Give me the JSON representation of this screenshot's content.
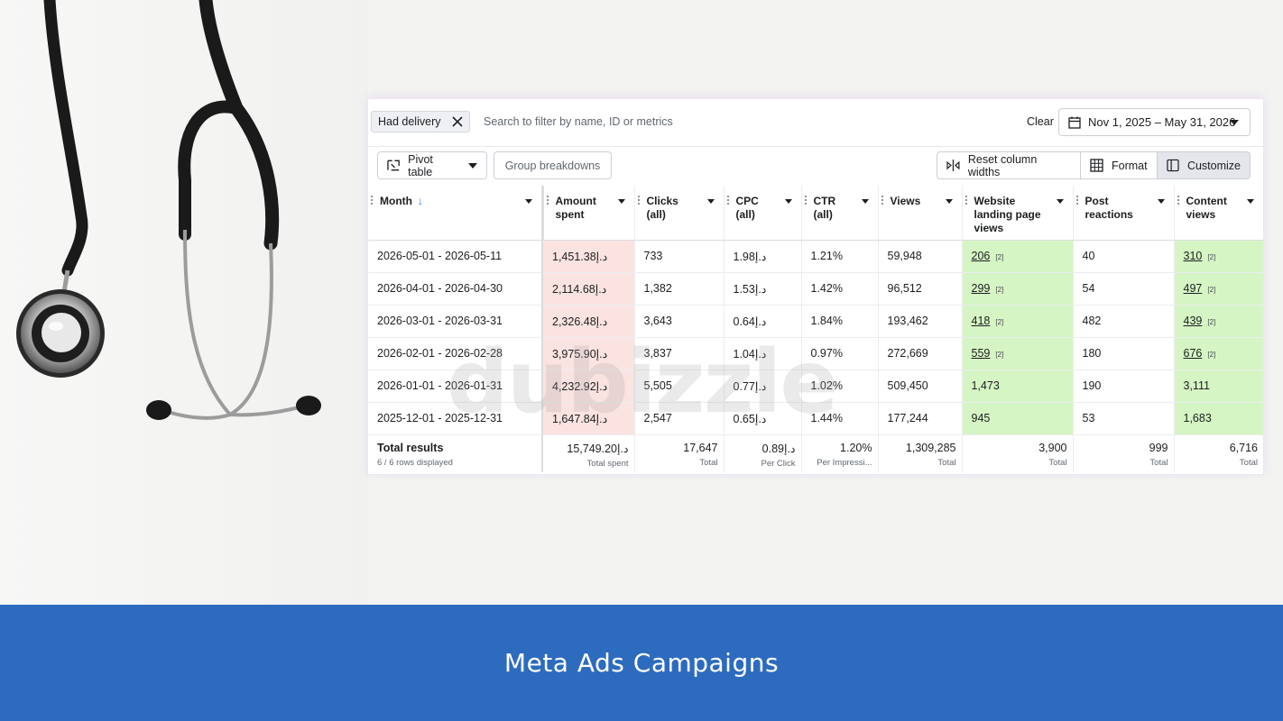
{
  "filter": {
    "chip_label": "Had delivery",
    "search_placeholder": "Search to filter by name, ID or metrics",
    "clear_label": "Clear",
    "date_range": "Nov 1, 2025 – May 31, 2026"
  },
  "toolbar": {
    "pivot_label": "Pivot table",
    "group_label": "Group breakdowns",
    "reset_label": "Reset column widths",
    "format_label": "Format",
    "customize_label": "Customize"
  },
  "columns": {
    "month": "Month",
    "amount_1": "Amount",
    "amount_2": "spent",
    "clicks_1": "Clicks",
    "clicks_2": "(all)",
    "cpc_1": "CPC",
    "cpc_2": "(all)",
    "ctr_1": "CTR",
    "ctr_2": "(all)",
    "views": "Views",
    "wlpv_1": "Website",
    "wlpv_2": "landing page",
    "wlpv_3": "views",
    "reactions_1": "Post",
    "reactions_2": "reactions",
    "content_1": "Content",
    "content_2": "views"
  },
  "rows": [
    {
      "month": "2026-05-01 - 2026-05-11",
      "amount": "1,451.38د.إ",
      "clicks": "733",
      "cpc": "1.98د.إ",
      "ctr": "1.21%",
      "views": "59,948",
      "wlpv": "206",
      "wlpv_note": "[2]",
      "reactions": "40",
      "content": "310",
      "content_note": "[2]"
    },
    {
      "month": "2026-04-01 - 2026-04-30",
      "amount": "2,114.68د.إ",
      "clicks": "1,382",
      "cpc": "1.53د.إ",
      "ctr": "1.42%",
      "views": "96,512",
      "wlpv": "299",
      "wlpv_note": "[2]",
      "reactions": "54",
      "content": "497",
      "content_note": "[2]"
    },
    {
      "month": "2026-03-01 - 2026-03-31",
      "amount": "2,326.48د.إ",
      "clicks": "3,643",
      "cpc": "0.64د.إ",
      "ctr": "1.84%",
      "views": "193,462",
      "wlpv": "418",
      "wlpv_note": "[2]",
      "reactions": "482",
      "content": "439",
      "content_note": "[2]"
    },
    {
      "month": "2026-02-01 - 2026-02-28",
      "amount": "3,975.90د.إ",
      "clicks": "3,837",
      "cpc": "1.04د.إ",
      "ctr": "0.97%",
      "views": "272,669",
      "wlpv": "559",
      "wlpv_note": "[2]",
      "reactions": "180",
      "content": "676",
      "content_note": "[2]"
    },
    {
      "month": "2026-01-01 - 2026-01-31",
      "amount": "4,232.92د.إ",
      "clicks": "5,505",
      "cpc": "0.77د.إ",
      "ctr": "1.02%",
      "views": "509,450",
      "wlpv": "1,473",
      "wlpv_note": "",
      "reactions": "190",
      "content": "3,111",
      "content_note": ""
    },
    {
      "month": "2025-12-01 - 2025-12-31",
      "amount": "1,647.84د.إ",
      "clicks": "2,547",
      "cpc": "0.65د.إ",
      "ctr": "1.44%",
      "views": "177,244",
      "wlpv": "945",
      "wlpv_note": "",
      "reactions": "53",
      "content": "1,683",
      "content_note": ""
    }
  ],
  "totals": {
    "label": "Total results",
    "sub": "6 / 6 rows displayed",
    "amount": "15,749.20د.إ",
    "amount_l": "Total spent",
    "clicks": "17,647",
    "clicks_l": "Total",
    "cpc": "0.89د.إ",
    "cpc_l": "Per Click",
    "ctr": "1.20%",
    "ctr_l": "Per Impressi...",
    "views": "1,309,285",
    "views_l": "Total",
    "wlpv": "3,900",
    "wlpv_l": "Total",
    "reactions": "999",
    "reactions_l": "Total",
    "content": "6,716",
    "content_l": "Total"
  },
  "watermark": "dubizzle",
  "footer_title": "Meta Ads Campaigns",
  "colors": {
    "footer": "#2d6bbf",
    "amount_bg": "#fbe3e1",
    "green_bg": "#d6f5c4"
  }
}
